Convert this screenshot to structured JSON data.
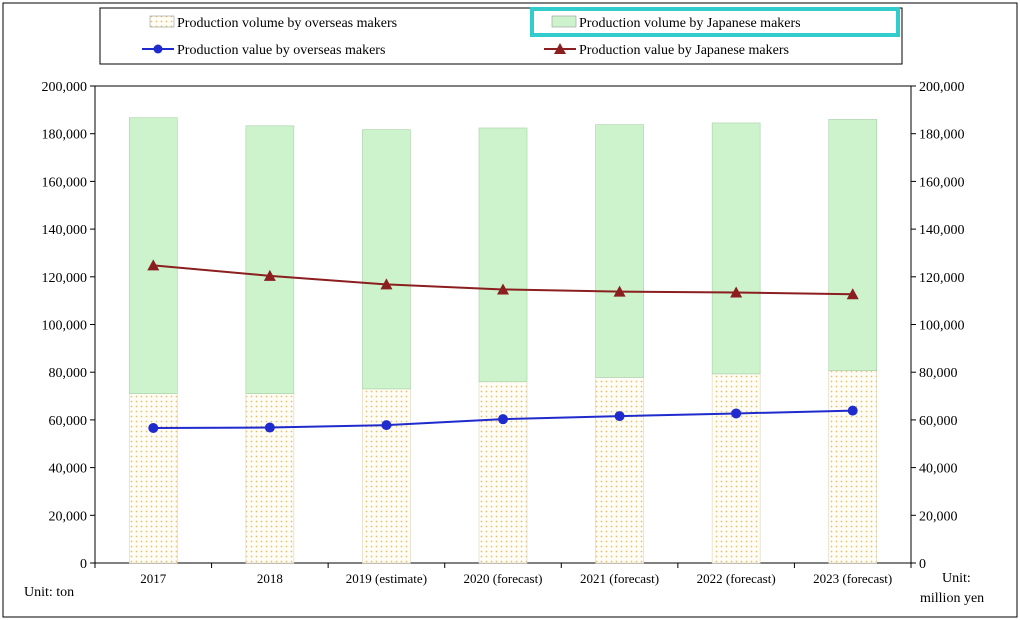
{
  "chart_data": {
    "type": "bar",
    "categories": [
      "2017",
      "2018",
      "2019 (estimate)",
      "2020 (forecast)",
      "2021 (forecast)",
      "2022 (forecast)",
      "2023 (forecast)"
    ],
    "series": [
      {
        "name": "Production volume by overseas makers",
        "kind": "bar",
        "axis": "left",
        "values": [
          71000,
          71000,
          73000,
          76000,
          77800,
          79300,
          80700
        ]
      },
      {
        "name": "Production volume by Japanese makers",
        "kind": "bar",
        "axis": "left",
        "values": [
          115700,
          112300,
          108700,
          106400,
          106000,
          105200,
          105300
        ]
      },
      {
        "name": "Production value by overseas makers",
        "kind": "line",
        "axis": "right",
        "values": [
          56600,
          56800,
          57800,
          60300,
          61600,
          62700,
          63900
        ]
      },
      {
        "name": "Production value by Japanese makers",
        "kind": "line",
        "axis": "right",
        "values": [
          124800,
          120400,
          116800,
          114700,
          113800,
          113400,
          112700
        ]
      }
    ],
    "ylim": [
      0,
      200000
    ],
    "y2lim": [
      0,
      200000
    ],
    "yticks": [
      "0",
      "20,000",
      "40,000",
      "60,000",
      "80,000",
      "100,000",
      "120,000",
      "140,000",
      "160,000",
      "180,000",
      "200,000"
    ],
    "y_unit": "Unit: ton",
    "y2_unit_line1": "Unit:",
    "y2_unit_line2": "million yen",
    "colors": {
      "overseas_bar": "#f7dfa0",
      "japanese_bar": "#ccf3cc",
      "overseas_line": "#1f2bcc",
      "japanese_line": "#8b1e1e",
      "legend_highlight": "#33cccc"
    },
    "legend_position": "top",
    "grid": false
  }
}
